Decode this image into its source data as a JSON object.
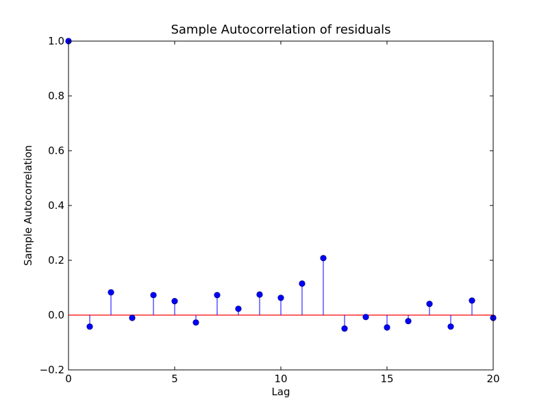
{
  "chart_data": {
    "type": "stem",
    "title": "Sample Autocorrelation of residuals",
    "xlabel": "Lag",
    "ylabel": "Sample Autocorrelation",
    "xlim": [
      0,
      20
    ],
    "ylim": [
      -0.2,
      1.0
    ],
    "xticks": [
      0,
      5,
      10,
      15,
      20
    ],
    "xtick_labels": [
      "0",
      "5",
      "10",
      "15",
      "20"
    ],
    "yticks": [
      -0.2,
      0.0,
      0.2,
      0.4,
      0.6,
      0.8,
      1.0
    ],
    "ytick_labels": [
      "−0.2",
      "0.0",
      "0.2",
      "0.4",
      "0.6",
      "0.8",
      "1.0"
    ],
    "grid": false,
    "x": [
      0,
      1,
      2,
      3,
      4,
      5,
      6,
      7,
      8,
      9,
      10,
      11,
      12,
      13,
      14,
      15,
      16,
      17,
      18,
      19,
      20
    ],
    "values": [
      1.0,
      -0.042,
      0.083,
      -0.01,
      0.073,
      0.051,
      -0.027,
      0.073,
      0.023,
      0.075,
      0.063,
      0.115,
      0.208,
      -0.049,
      -0.007,
      -0.045,
      -0.022,
      0.041,
      -0.042,
      0.053,
      -0.01
    ],
    "colors": {
      "stem": "#0000ff",
      "marker": "#0000ff",
      "marker_edge": "#000080",
      "baseline": "#ff0000",
      "axes": "#000000"
    }
  }
}
